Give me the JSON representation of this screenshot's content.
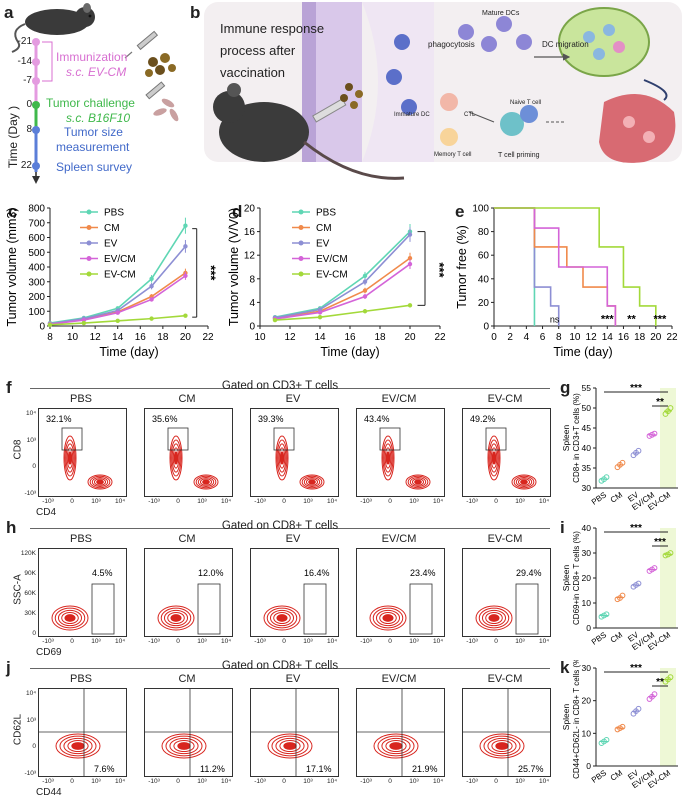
{
  "panel_letters": [
    "a",
    "b",
    "c",
    "d",
    "e",
    "f",
    "g",
    "h",
    "i",
    "j",
    "k"
  ],
  "timeline": {
    "axis_label": "Time (Day )",
    "days": [
      "-21",
      "-14",
      "-7",
      "0",
      "8",
      "22"
    ],
    "immunization": "Immunization",
    "immunization_sub": "s.c. EV-CM",
    "tumor_challenge": "Tumor challenge",
    "tumor_sub": "s.c. B16F10",
    "tumor_size": "Tumor size",
    "measurement": "measurement",
    "spleen_survey": "Spleen survey",
    "colors": {
      "immun": "#d86fd1",
      "tumor": "#3fb84b",
      "meas": "#4169c9"
    }
  },
  "schematic": {
    "title_lines": [
      "Immune response",
      "process after",
      "vaccination"
    ],
    "mature_dcs": "Mature DCs",
    "phagocytosis": "phagocytosis",
    "dc_migration": "DC migration",
    "immature_dc": "Immature DC",
    "naive_t_cell": "Naive T cell",
    "ctl": "CTL",
    "memory_t_cell": "Memory T cell",
    "t_cell_priming": "T cell priming"
  },
  "series_colors": {
    "PBS": "#5fd6b4",
    "CM": "#f08a4b",
    "EV": "#8d8fd4",
    "EV/CM": "#d464d8",
    "EV-CM": "#a3d93a"
  },
  "chart_data": [
    {
      "id": "c",
      "type": "line",
      "title": "",
      "xlabel": "Time (day)",
      "ylabel": "Tumor volume (mm3)",
      "x": [
        8,
        11,
        14,
        17,
        20
      ],
      "xticks": [
        8,
        10,
        12,
        14,
        16,
        18,
        20,
        22
      ],
      "yticks": [
        0,
        100,
        200,
        300,
        400,
        500,
        600,
        700,
        800
      ],
      "xlim": [
        8,
        22
      ],
      "ylim": [
        0,
        800
      ],
      "series": [
        {
          "name": "PBS",
          "values": [
            20,
            55,
            120,
            320,
            680
          ]
        },
        {
          "name": "CM",
          "values": [
            15,
            45,
            95,
            200,
            360
          ]
        },
        {
          "name": "EV",
          "values": [
            15,
            50,
            105,
            270,
            540
          ]
        },
        {
          "name": "EV/CM",
          "values": [
            12,
            40,
            90,
            180,
            340
          ]
        },
        {
          "name": "EV-CM",
          "values": [
            8,
            20,
            35,
            50,
            70
          ]
        }
      ],
      "significance": "***"
    },
    {
      "id": "d",
      "type": "line",
      "xlabel": "Time (day)",
      "ylabel": "Tumor volume (V/V0)",
      "x": [
        11,
        14,
        17,
        20
      ],
      "xticks": [
        10,
        12,
        14,
        16,
        18,
        20,
        22
      ],
      "yticks": [
        0,
        4,
        8,
        12,
        16,
        20
      ],
      "xlim": [
        10,
        22
      ],
      "ylim": [
        0,
        20
      ],
      "series": [
        {
          "name": "PBS",
          "values": [
            1.5,
            3,
            8.5,
            16
          ]
        },
        {
          "name": "CM",
          "values": [
            1.3,
            2.5,
            6,
            11.5
          ]
        },
        {
          "name": "EV",
          "values": [
            1.4,
            2.8,
            7.5,
            15.5
          ]
        },
        {
          "name": "EV/CM",
          "values": [
            1.2,
            2.3,
            5,
            10.5
          ]
        },
        {
          "name": "EV-CM",
          "values": [
            1,
            1.5,
            2.5,
            3.5
          ]
        }
      ],
      "significance": "***"
    },
    {
      "id": "e",
      "type": "line",
      "xlabel": "Time (day)",
      "ylabel": "Tumor free (%)",
      "xticks": [
        0,
        2,
        4,
        6,
        8,
        10,
        12,
        14,
        16,
        18,
        20,
        22
      ],
      "yticks": [
        0,
        20,
        40,
        60,
        80,
        100
      ],
      "xlim": [
        0,
        22
      ],
      "ylim": [
        0,
        100
      ],
      "series": [
        {
          "name": "PBS",
          "x": [
            0,
            5,
            5
          ],
          "values": [
            100,
            100,
            0
          ]
        },
        {
          "name": "EV",
          "x": [
            0,
            5,
            5,
            7,
            7,
            8,
            8
          ],
          "values": [
            100,
            100,
            33,
            33,
            17,
            17,
            0
          ]
        },
        {
          "name": "CM",
          "x": [
            0,
            5,
            5,
            9,
            9,
            11,
            11,
            14,
            14,
            15,
            15
          ],
          "values": [
            100,
            100,
            67,
            67,
            50,
            50,
            33,
            33,
            17,
            17,
            0
          ]
        },
        {
          "name": "EV/CM",
          "x": [
            0,
            5,
            5,
            8,
            8,
            14,
            14,
            15,
            15
          ],
          "values": [
            100,
            100,
            83,
            83,
            50,
            50,
            17,
            17,
            0
          ]
        },
        {
          "name": "EV-CM",
          "x": [
            0,
            13,
            13,
            16,
            16,
            18,
            18,
            20,
            20
          ],
          "values": [
            100,
            100,
            67,
            67,
            33,
            33,
            17,
            17,
            0
          ]
        }
      ],
      "annotations": [
        "ns",
        "***",
        "**",
        "***"
      ]
    },
    {
      "id": "g",
      "type": "scatter",
      "ylabel_line1": "Spleen",
      "ylabel_line2": "CD8+ in CD3+T cells (%)",
      "categories": [
        "PBS",
        "CM",
        "EV",
        "EV/CM",
        "EV-CM"
      ],
      "yticks": [
        30,
        35,
        40,
        45,
        50,
        55
      ],
      "ylim": [
        30,
        55
      ],
      "values": [
        [
          31.8,
          32.2,
          32.7
        ],
        [
          35.2,
          35.8,
          36.3
        ],
        [
          38.2,
          38.8,
          39.3
        ],
        [
          43.0,
          43.3,
          43.6
        ],
        [
          48.5,
          49.2,
          50.0
        ]
      ],
      "significance": [
        "***",
        "**"
      ]
    },
    {
      "id": "i",
      "type": "scatter",
      "ylabel_line1": "Spleen",
      "ylabel_line2": "CD69+in CD8+ T cells (%)",
      "categories": [
        "PBS",
        "CM",
        "EV",
        "EV/CM",
        "EV-CM"
      ],
      "yticks": [
        0,
        10,
        20,
        30,
        40
      ],
      "ylim": [
        0,
        40
      ],
      "values": [
        [
          4.5,
          5.0,
          5.5
        ],
        [
          11.5,
          12.0,
          13.0
        ],
        [
          16.5,
          17.2,
          17.8
        ],
        [
          22.8,
          23.4,
          24.0
        ],
        [
          29.0,
          29.4,
          30.0
        ]
      ],
      "significance": [
        "***",
        "***"
      ]
    },
    {
      "id": "k",
      "type": "scatter",
      "ylabel_line1": "Spleen",
      "ylabel_line2": "CD44+CD62L- in CD8+ T cells (%)",
      "categories": [
        "PBS",
        "CM",
        "EV",
        "EV/CM",
        "EV-CM"
      ],
      "yticks": [
        0,
        10,
        20,
        30
      ],
      "ylim": [
        0,
        30
      ],
      "values": [
        [
          7.0,
          7.5,
          8.0
        ],
        [
          11.2,
          11.6,
          12.0
        ],
        [
          16.0,
          16.8,
          17.5
        ],
        [
          20.5,
          21.2,
          22.0
        ],
        [
          25.8,
          26.5,
          27.2
        ]
      ],
      "significance": [
        "***",
        "**"
      ]
    }
  ],
  "flow_rows": [
    {
      "id": "f",
      "gate_title": "Gated on CD3+ T cells",
      "ylabel": "CD8",
      "xlabel": "CD4",
      "xticks": [
        "-10³",
        "0",
        "10³",
        "10⁴"
      ],
      "yticks": [
        "-10³",
        "0",
        "10³",
        "10⁴"
      ],
      "panels": [
        {
          "name": "PBS",
          "pct": "32.1%"
        },
        {
          "name": "CM",
          "pct": "35.6%"
        },
        {
          "name": "EV",
          "pct": "39.3%"
        },
        {
          "name": "EV/CM",
          "pct": "43.4%"
        },
        {
          "name": "EV-CM",
          "pct": "49.2%"
        }
      ]
    },
    {
      "id": "h",
      "gate_title": "Gated on CD8+ T cells",
      "ylabel": "SSC-A",
      "xlabel": "CD69",
      "xticks": [
        "-10³",
        "0",
        "10³",
        "10⁴"
      ],
      "yticks": [
        "0",
        "30K",
        "60K",
        "90K",
        "120K"
      ],
      "panels": [
        {
          "name": "PBS",
          "pct": "4.5%"
        },
        {
          "name": "CM",
          "pct": "12.0%"
        },
        {
          "name": "EV",
          "pct": "16.4%"
        },
        {
          "name": "EV/CM",
          "pct": "23.4%"
        },
        {
          "name": "EV-CM",
          "pct": "29.4%"
        }
      ]
    },
    {
      "id": "j",
      "gate_title": "Gated on CD8+ T cells",
      "ylabel": "CD62L",
      "xlabel": "CD44",
      "xticks": [
        "-10³",
        "0",
        "10³",
        "10⁴"
      ],
      "yticks": [
        "-10³",
        "0",
        "10³",
        "10⁴"
      ],
      "panels": [
        {
          "name": "PBS",
          "pct": "7.6%"
        },
        {
          "name": "CM",
          "pct": "11.2%"
        },
        {
          "name": "EV",
          "pct": "17.1%"
        },
        {
          "name": "EV/CM",
          "pct": "21.9%"
        },
        {
          "name": "EV-CM",
          "pct": "25.7%"
        }
      ]
    }
  ]
}
